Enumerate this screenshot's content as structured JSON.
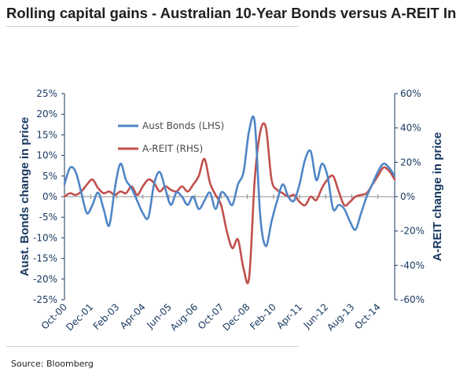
{
  "title": "Rolling capital gains - Australian 10-Year Bonds versus A-REIT In",
  "source": "Source: Bloomberg",
  "chart_data": {
    "type": "line",
    "ylabel": "Aust. Bonds change in price",
    "y2label": "A-REIT change in price",
    "ylim": [
      -0.25,
      0.25
    ],
    "y2lim": [
      -0.6,
      0.6
    ],
    "yticks": [
      "25%",
      "20%",
      "15%",
      "10%",
      "5%",
      "0%",
      "-5%",
      "-10%",
      "-15%",
      "-20%",
      "-25%"
    ],
    "y2ticks": [
      "60%",
      "40%",
      "20%",
      "0%",
      "-20%",
      "-40%",
      "-60%"
    ],
    "xlim": [
      2000.75,
      2015.5
    ],
    "xticks": [
      {
        "label": "Oct-00",
        "x": 2000.75
      },
      {
        "label": "Dec-01",
        "x": 2001.917
      },
      {
        "label": "Feb-03",
        "x": 2003.083
      },
      {
        "label": "Apr-04",
        "x": 2004.25
      },
      {
        "label": "Jun-05",
        "x": 2005.417
      },
      {
        "label": "Aug-06",
        "x": 2006.583
      },
      {
        "label": "Oct-07",
        "x": 2007.75
      },
      {
        "label": "Dec-08",
        "x": 2008.917
      },
      {
        "label": "Feb-10",
        "x": 2010.083
      },
      {
        "label": "Apr-11",
        "x": 2011.25
      },
      {
        "label": "Jun-12",
        "x": 2012.417
      },
      {
        "label": "Aug-13",
        "x": 2013.583
      },
      {
        "label": "Oct-14",
        "x": 2014.75
      }
    ],
    "grid": false,
    "legend_position": "top-left",
    "series": [
      {
        "name": "Aust Bonds (LHS)",
        "axis": "left",
        "color": "#4f86c6",
        "x": [
          2000.75,
          2001.0,
          2001.25,
          2001.5,
          2001.75,
          2002.0,
          2002.25,
          2002.5,
          2002.75,
          2003.0,
          2003.25,
          2003.5,
          2003.75,
          2004.0,
          2004.25,
          2004.5,
          2004.75,
          2005.0,
          2005.25,
          2005.5,
          2005.75,
          2006.0,
          2006.25,
          2006.5,
          2006.75,
          2007.0,
          2007.25,
          2007.5,
          2007.75,
          2008.0,
          2008.25,
          2008.5,
          2008.75,
          2009.0,
          2009.25,
          2009.5,
          2009.75,
          2010.0,
          2010.25,
          2010.5,
          2010.75,
          2011.0,
          2011.25,
          2011.5,
          2011.75,
          2012.0,
          2012.25,
          2012.5,
          2012.75,
          2013.0,
          2013.25,
          2013.5,
          2013.75,
          2014.0,
          2014.25,
          2014.5,
          2014.75,
          2015.0,
          2015.25,
          2015.5
        ],
        "values": [
          0.03,
          0.07,
          0.06,
          0.01,
          -0.04,
          -0.02,
          0.01,
          -0.03,
          -0.07,
          0.02,
          0.08,
          0.04,
          0.02,
          -0.01,
          -0.04,
          -0.05,
          0.03,
          0.06,
          0.02,
          -0.02,
          0.01,
          0.0,
          -0.02,
          0.0,
          -0.03,
          -0.01,
          0.01,
          -0.03,
          0.01,
          0.0,
          -0.02,
          0.03,
          0.06,
          0.16,
          0.18,
          -0.05,
          -0.12,
          -0.06,
          -0.01,
          0.03,
          0.0,
          -0.01,
          0.03,
          0.09,
          0.11,
          0.04,
          0.08,
          0.05,
          -0.03,
          -0.02,
          -0.03,
          -0.06,
          -0.08,
          -0.04,
          0.0,
          0.03,
          0.06,
          0.08,
          0.07,
          0.05
        ]
      },
      {
        "name": "A-REIT (RHS)",
        "axis": "right",
        "color": "#c0504d",
        "x": [
          2000.75,
          2001.0,
          2001.25,
          2001.5,
          2001.75,
          2002.0,
          2002.25,
          2002.5,
          2002.75,
          2003.0,
          2003.25,
          2003.5,
          2003.75,
          2004.0,
          2004.25,
          2004.5,
          2004.75,
          2005.0,
          2005.25,
          2005.5,
          2005.75,
          2006.0,
          2006.25,
          2006.5,
          2006.75,
          2007.0,
          2007.25,
          2007.5,
          2007.75,
          2008.0,
          2008.25,
          2008.5,
          2008.75,
          2009.0,
          2009.25,
          2009.5,
          2009.75,
          2010.0,
          2010.25,
          2010.5,
          2010.75,
          2011.0,
          2011.25,
          2011.5,
          2011.75,
          2012.0,
          2012.25,
          2012.5,
          2012.75,
          2013.0,
          2013.25,
          2013.5,
          2013.75,
          2014.0,
          2014.25,
          2014.5,
          2014.75,
          2015.0,
          2015.25,
          2015.5
        ],
        "values": [
          0.0,
          0.02,
          0.01,
          0.03,
          0.07,
          0.1,
          0.05,
          0.02,
          0.03,
          0.01,
          0.03,
          0.02,
          0.06,
          0.01,
          0.06,
          0.1,
          0.08,
          0.03,
          0.06,
          0.04,
          0.03,
          0.06,
          0.03,
          0.07,
          0.12,
          0.22,
          0.08,
          0.01,
          -0.05,
          -0.2,
          -0.3,
          -0.25,
          -0.42,
          -0.47,
          0.1,
          0.38,
          0.4,
          0.1,
          0.04,
          0.02,
          0.0,
          0.01,
          -0.03,
          -0.05,
          0.0,
          -0.02,
          0.05,
          0.1,
          0.12,
          0.03,
          -0.05,
          -0.03,
          0.0,
          0.01,
          0.02,
          0.07,
          0.12,
          0.17,
          0.15,
          0.1
        ]
      }
    ]
  }
}
